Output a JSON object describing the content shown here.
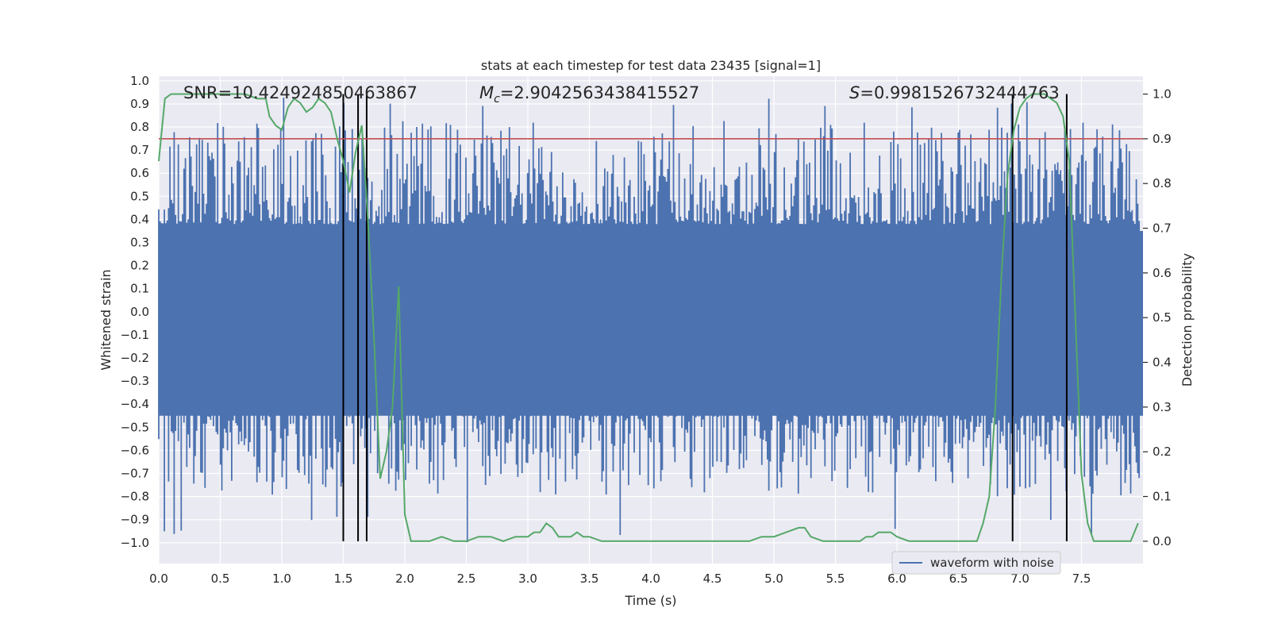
{
  "chart_data": {
    "type": "line",
    "title": "stats at each timestep for test data 23435 [signal=1]",
    "xlabel": "Time (s)",
    "ylabel": "Whitened strain",
    "y2label": "Detection probability",
    "xlim": [
      0,
      8
    ],
    "ylim": [
      -1.09,
      1.02
    ],
    "y2lim": [
      -0.05,
      1.04
    ],
    "x_ticks": [
      "0.0",
      "0.5",
      "1.0",
      "1.5",
      "2.0",
      "2.5",
      "3.0",
      "3.5",
      "4.0",
      "4.5",
      "5.0",
      "5.5",
      "6.0",
      "6.5",
      "7.0",
      "7.5"
    ],
    "y_ticks": [
      "1.0",
      "0.9",
      "0.8",
      "0.7",
      "0.6",
      "0.5",
      "0.4",
      "0.3",
      "0.2",
      "0.1",
      "0.0",
      "−0.1",
      "−0.2",
      "−0.3",
      "−0.4",
      "−0.5",
      "−0.6",
      "−0.7",
      "−0.8",
      "−0.9",
      "−1.0"
    ],
    "y2_ticks": [
      "1.0",
      "0.9",
      "0.8",
      "0.7",
      "0.6",
      "0.5",
      "0.4",
      "0.3",
      "0.2",
      "0.1",
      "0.0"
    ],
    "annotations": {
      "snr": "SNR=10.424924850463867",
      "mc_symbol": "M",
      "mc_sub": "c",
      "mc_value": "=2.9042563438415527",
      "s_symbol": "S",
      "s_value": "=0.9981526732444763"
    },
    "legend": {
      "label": "waveform with noise",
      "placement": "lower-right"
    },
    "threshold": {
      "value": 0.9,
      "axis": "y2",
      "color": "#c44e52"
    },
    "vertical_lines": [
      1.5,
      1.62,
      1.69,
      6.94,
      7.38
    ],
    "waveform": {
      "name": "waveform with noise",
      "color": "#4c72b0",
      "n_samples": 700,
      "seed": 23435,
      "typical_range": [
        -0.4,
        0.4
      ],
      "max_peak": 0.93,
      "min_peak": -1.0,
      "dense_band": [
        -0.45,
        0.35
      ]
    },
    "probability": {
      "name": "detection probability",
      "color": "#55a868",
      "x": [
        0.0,
        0.05,
        0.1,
        0.2,
        0.3,
        0.4,
        0.5,
        0.6,
        0.7,
        0.8,
        0.87,
        0.9,
        0.95,
        1.0,
        1.05,
        1.1,
        1.15,
        1.2,
        1.25,
        1.3,
        1.35,
        1.4,
        1.45,
        1.5,
        1.55,
        1.6,
        1.65,
        1.7,
        1.75,
        1.8,
        1.85,
        1.9,
        1.95,
        2.0,
        2.05,
        2.1,
        2.2,
        2.3,
        2.4,
        2.5,
        2.6,
        2.7,
        2.8,
        2.9,
        3.0,
        3.05,
        3.1,
        3.15,
        3.2,
        3.25,
        3.3,
        3.35,
        3.4,
        3.45,
        3.5,
        3.6,
        3.8,
        4.0,
        4.2,
        4.4,
        4.6,
        4.8,
        4.9,
        5.0,
        5.1,
        5.2,
        5.25,
        5.3,
        5.4,
        5.5,
        5.6,
        5.7,
        5.75,
        5.8,
        5.85,
        5.9,
        5.95,
        6.0,
        6.1,
        6.2,
        6.3,
        6.4,
        6.5,
        6.6,
        6.65,
        6.7,
        6.75,
        6.8,
        6.85,
        6.9,
        6.95,
        7.0,
        7.05,
        7.1,
        7.15,
        7.2,
        7.25,
        7.3,
        7.35,
        7.4,
        7.45,
        7.5,
        7.55,
        7.6,
        7.7,
        7.8,
        7.9,
        7.96
      ],
      "y": [
        0.85,
        0.99,
        1.0,
        1.0,
        1.0,
        1.0,
        1.0,
        1.0,
        1.0,
        0.99,
        0.99,
        0.95,
        0.93,
        0.92,
        0.97,
        0.99,
        0.98,
        0.96,
        0.97,
        0.99,
        0.98,
        0.96,
        0.9,
        0.85,
        0.78,
        0.87,
        0.93,
        0.72,
        0.45,
        0.14,
        0.2,
        0.3,
        0.57,
        0.06,
        0.0,
        0.0,
        0.0,
        0.01,
        0.0,
        0.0,
        0.01,
        0.01,
        0.0,
        0.01,
        0.01,
        0.02,
        0.02,
        0.04,
        0.03,
        0.01,
        0.01,
        0.01,
        0.02,
        0.01,
        0.01,
        0.0,
        0.0,
        0.0,
        0.0,
        0.0,
        0.0,
        0.0,
        0.01,
        0.01,
        0.02,
        0.03,
        0.03,
        0.01,
        0.0,
        0.0,
        0.0,
        0.0,
        0.01,
        0.01,
        0.02,
        0.02,
        0.02,
        0.01,
        0.0,
        0.0,
        0.0,
        0.0,
        0.0,
        0.0,
        0.0,
        0.04,
        0.1,
        0.3,
        0.6,
        0.82,
        0.92,
        0.97,
        0.99,
        1.0,
        1.0,
        1.0,
        0.99,
        0.98,
        0.95,
        0.85,
        0.5,
        0.15,
        0.04,
        0.0,
        0.0,
        0.0,
        0.0,
        0.04
      ]
    }
  }
}
